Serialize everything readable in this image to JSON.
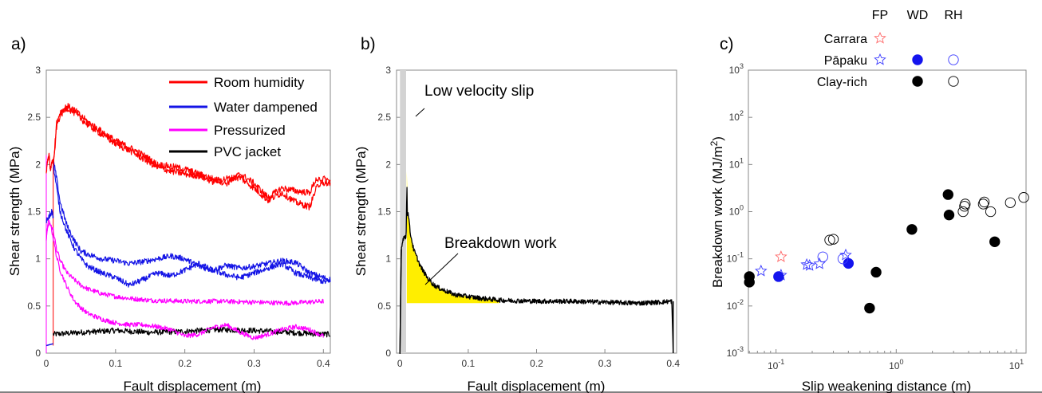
{
  "panels": {
    "a": {
      "letter": "a)",
      "xlabel": "Fault displacement (m)",
      "ylabel": "Shear strength (MPa)",
      "xlim": [
        0,
        0.41
      ],
      "ylim": [
        0,
        3
      ],
      "xticks": [
        "0",
        "0.1",
        "0.2",
        "0.3",
        "0.4"
      ],
      "yticks": [
        "0",
        "0.5",
        "1",
        "1.5",
        "2",
        "2.5",
        "3"
      ],
      "legend": [
        {
          "label": "Room humidity",
          "color": "#ff0000"
        },
        {
          "label": "Water dampened",
          "color": "#1414e6"
        },
        {
          "label": "Pressurized",
          "color": "#ff00ff"
        },
        {
          "label": "PVC jacket",
          "color": "#000000"
        }
      ]
    },
    "b": {
      "letter": "b)",
      "xlabel": "Fault displacement (m)",
      "ylabel": "Shear strength (MPa)",
      "xlim": [
        -0.005,
        0.405
      ],
      "ylim": [
        0,
        3
      ],
      "xticks": [
        "0",
        "0.1",
        "0.2",
        "0.3",
        "0.4"
      ],
      "yticks": [
        "0",
        "0.5",
        "1",
        "1.5",
        "2",
        "2.5",
        "3"
      ],
      "annotations": {
        "low_velocity": "Low velocity slip",
        "breakdown": "Breakdown work"
      },
      "colors": {
        "fill": "#ffee00",
        "band": "#d3d3d3"
      }
    },
    "c": {
      "letter": "c)",
      "xlabel": "Slip weakening distance (m)",
      "ylabel": "Breakdown work (MJ/m",
      "ylabel_sup": "2",
      "ylabel_end": ")",
      "xlim_log10": [
        -1.23,
        1.08
      ],
      "ylim_log10": [
        -3,
        3
      ],
      "xticks": [
        {
          "base": "10",
          "exp": "-1"
        },
        {
          "base": "10",
          "exp": "0"
        },
        {
          "base": "10",
          "exp": "1"
        }
      ],
      "yticks": [
        {
          "base": "10",
          "exp": "-3"
        },
        {
          "base": "10",
          "exp": "-2"
        },
        {
          "base": "10",
          "exp": "-1"
        },
        {
          "base": "10",
          "exp": "0"
        },
        {
          "base": "10",
          "exp": "1"
        },
        {
          "base": "10",
          "exp": "2"
        },
        {
          "base": "10",
          "exp": "3"
        }
      ],
      "legend_headers": [
        "FP",
        "WD",
        "RH"
      ],
      "legend_rows": [
        "Carrara",
        "Pāpaku",
        "Clay-rich"
      ],
      "colors": {
        "carrara": "#ff6666",
        "papaku": "#3a3aff",
        "clay": "#000000"
      }
    }
  },
  "chart_data": [
    {
      "type": "line",
      "panel": "a",
      "xlabel": "Fault displacement (m)",
      "ylabel": "Shear strength (MPa)",
      "xlim": [
        0,
        0.41
      ],
      "ylim": [
        0,
        3
      ],
      "series": [
        {
          "name": "Room humidity",
          "color": "#ff0000",
          "noise": 0.035,
          "runs": [
            {
              "x": [
                0.01,
                0.015,
                0.02,
                0.03,
                0.04,
                0.06,
                0.08,
                0.1,
                0.12,
                0.14,
                0.16,
                0.18,
                0.2,
                0.22,
                0.24,
                0.26,
                0.28,
                0.3,
                0.32,
                0.34,
                0.36,
                0.38,
                0.39,
                0.4,
                0.41
              ],
              "y": [
                2.0,
                2.45,
                2.55,
                2.62,
                2.58,
                2.45,
                2.35,
                2.25,
                2.18,
                2.1,
                2.0,
                1.98,
                1.95,
                1.9,
                1.85,
                1.8,
                1.9,
                1.8,
                1.65,
                1.75,
                1.72,
                1.7,
                1.85,
                1.8,
                1.8
              ]
            },
            {
              "x": [
                0.01,
                0.015,
                0.02,
                0.03,
                0.04,
                0.06,
                0.08,
                0.1,
                0.12,
                0.14,
                0.16,
                0.18,
                0.2,
                0.22,
                0.24,
                0.26,
                0.28,
                0.3,
                0.32,
                0.34,
                0.36,
                0.38,
                0.39,
                0.4,
                0.41
              ],
              "y": [
                1.95,
                2.4,
                2.52,
                2.6,
                2.55,
                2.42,
                2.32,
                2.22,
                2.15,
                2.06,
                1.97,
                1.93,
                1.9,
                1.88,
                1.82,
                1.85,
                1.86,
                1.75,
                1.62,
                1.7,
                1.6,
                1.55,
                1.75,
                1.85,
                1.82
              ]
            },
            {
              "x": [
                0.0,
                0.002,
                0.004,
                0.006,
                0.008,
                0.01
              ],
              "y": [
                1.9,
                2.05,
                2.1,
                1.95,
                2.0,
                2.05
              ]
            }
          ]
        },
        {
          "name": "Water dampened",
          "color": "#1414e6",
          "noise": 0.03,
          "runs": [
            {
              "x": [
                0.01,
                0.015,
                0.02,
                0.03,
                0.04,
                0.05,
                0.06,
                0.08,
                0.1,
                0.12,
                0.14,
                0.16,
                0.18,
                0.2,
                0.22,
                0.24,
                0.26,
                0.28,
                0.3,
                0.32,
                0.34,
                0.36,
                0.38,
                0.4,
                0.41
              ],
              "y": [
                2.05,
                1.85,
                1.6,
                1.35,
                1.2,
                1.08,
                1.05,
                1.0,
                0.98,
                0.95,
                0.97,
                1.0,
                1.03,
                1.0,
                0.92,
                0.88,
                0.93,
                0.9,
                0.92,
                0.95,
                0.98,
                0.96,
                0.85,
                0.8,
                0.78
              ]
            },
            {
              "x": [
                0.01,
                0.015,
                0.02,
                0.03,
                0.04,
                0.05,
                0.06,
                0.08,
                0.1,
                0.12,
                0.14,
                0.16,
                0.18,
                0.2,
                0.22,
                0.24,
                0.26,
                0.28,
                0.3,
                0.32,
                0.34,
                0.36,
                0.38,
                0.4,
                0.41
              ],
              "y": [
                2.0,
                1.75,
                1.5,
                1.28,
                1.12,
                1.0,
                0.92,
                0.85,
                0.8,
                0.72,
                0.78,
                0.85,
                0.82,
                0.88,
                0.95,
                0.88,
                0.83,
                0.8,
                0.85,
                0.9,
                0.95,
                0.85,
                0.8,
                0.76,
                0.75
              ]
            },
            {
              "x": [
                0.0,
                0.004,
                0.008,
                0.01
              ],
              "y": [
                1.4,
                1.45,
                1.5,
                1.45
              ]
            }
          ]
        },
        {
          "name": "Pressurized",
          "color": "#ff00ff",
          "noise": 0.025,
          "runs": [
            {
              "x": [
                0.0,
                0.002,
                0.005,
                0.01,
                0.015,
                0.02,
                0.03,
                0.04,
                0.05,
                0.06,
                0.08,
                0.1,
                0.12,
                0.15,
                0.2,
                0.25,
                0.3,
                0.35,
                0.4
              ],
              "y": [
                1.2,
                1.35,
                1.38,
                1.3,
                1.1,
                0.98,
                0.85,
                0.78,
                0.72,
                0.68,
                0.63,
                0.6,
                0.58,
                0.56,
                0.55,
                0.55,
                0.54,
                0.53,
                0.55
              ]
            },
            {
              "x": [
                0.0,
                0.003,
                0.006,
                0.01,
                0.015,
                0.02,
                0.03,
                0.04,
                0.05,
                0.06,
                0.08,
                0.1,
                0.12,
                0.14,
                0.16,
                0.18,
                0.2,
                0.22,
                0.24,
                0.26,
                0.28,
                0.3,
                0.32,
                0.34,
                0.36,
                0.38,
                0.4
              ],
              "y": [
                1.2,
                1.4,
                1.38,
                1.22,
                1.02,
                0.88,
                0.7,
                0.56,
                0.48,
                0.42,
                0.36,
                0.32,
                0.3,
                0.3,
                0.28,
                0.25,
                0.18,
                0.2,
                0.27,
                0.3,
                0.22,
                0.16,
                0.2,
                0.25,
                0.28,
                0.25,
                0.18
              ]
            }
          ]
        },
        {
          "name": "PVC jacket",
          "color": "#000000",
          "noise": 0.03,
          "runs": [
            {
              "x": [
                0.01,
                0.05,
                0.1,
                0.15,
                0.2,
                0.25,
                0.3,
                0.35,
                0.4,
                0.41
              ],
              "y": [
                0.2,
                0.22,
                0.24,
                0.22,
                0.23,
                0.25,
                0.24,
                0.22,
                0.2,
                0.2
              ]
            }
          ]
        }
      ]
    },
    {
      "type": "line",
      "panel": "b",
      "xlabel": "Fault displacement (m)",
      "ylabel": "Shear strength (MPa)",
      "xlim": [
        -0.005,
        0.405
      ],
      "ylim": [
        0,
        3
      ],
      "low_velocity_band": [
        0.0,
        0.009
      ],
      "breakdown_work_area": {
        "x_start": 0.01,
        "x_end": 0.145,
        "baseline": 0.53
      },
      "series": [
        {
          "name": "",
          "color": "#000000",
          "noise": 0.025,
          "x": [
            0.0,
            0.001,
            0.002,
            0.004,
            0.006,
            0.008,
            0.009,
            0.0095,
            0.01,
            0.011,
            0.012,
            0.015,
            0.02,
            0.03,
            0.04,
            0.05,
            0.06,
            0.08,
            0.1,
            0.12,
            0.15,
            0.2,
            0.25,
            0.3,
            0.35,
            0.38,
            0.398,
            0.4
          ],
          "y": [
            0.0,
            0.7,
            1.1,
            1.2,
            1.23,
            1.22,
            1.25,
            1.35,
            1.93,
            1.4,
            1.5,
            1.28,
            1.1,
            0.92,
            0.8,
            0.72,
            0.68,
            0.62,
            0.6,
            0.58,
            0.56,
            0.55,
            0.55,
            0.54,
            0.53,
            0.54,
            0.55,
            0.0
          ]
        }
      ]
    },
    {
      "type": "scatter",
      "panel": "c",
      "xlabel": "Slip weakening distance (m)",
      "ylabel": "Breakdown work (MJ/m2)",
      "xscale": "log",
      "yscale": "log",
      "xlim": [
        0.059,
        12
      ],
      "ylim": [
        0.001,
        1000
      ],
      "series": [
        {
          "name": "Carrara FP",
          "marker": "star-open",
          "color": "#ff6666",
          "points": [
            [
              0.11,
              0.11
            ]
          ]
        },
        {
          "name": "Pāpaku FP",
          "marker": "star-open",
          "color": "#3a3aff",
          "points": [
            [
              0.075,
              0.055
            ],
            [
              0.11,
              0.045
            ],
            [
              0.18,
              0.075
            ],
            [
              0.19,
              0.072
            ],
            [
              0.23,
              0.078
            ],
            [
              0.38,
              0.12
            ]
          ]
        },
        {
          "name": "Pāpaku WD",
          "marker": "circle-filled",
          "color": "#1414ee",
          "points": [
            [
              0.105,
              0.042
            ],
            [
              0.4,
              0.08
            ]
          ]
        },
        {
          "name": "Pāpaku RH",
          "marker": "circle-open",
          "color": "#3a3aff",
          "points": [
            [
              0.245,
              0.11
            ],
            [
              0.36,
              0.1
            ]
          ]
        },
        {
          "name": "Clay-rich WD",
          "marker": "circle-filled",
          "color": "#000000",
          "points": [
            [
              0.06,
              0.032
            ],
            [
              0.06,
              0.042
            ],
            [
              0.6,
              0.009
            ],
            [
              0.68,
              0.052
            ],
            [
              1.35,
              0.42
            ],
            [
              2.7,
              2.3
            ],
            [
              2.75,
              0.85
            ],
            [
              6.6,
              0.23
            ]
          ]
        },
        {
          "name": "Clay-rich RH",
          "marker": "circle-open",
          "color": "#000000",
          "points": [
            [
              0.28,
              0.25
            ],
            [
              0.3,
              0.26
            ],
            [
              3.6,
              1.0
            ],
            [
              3.7,
              1.3
            ],
            [
              3.75,
              1.45
            ],
            [
              5.3,
              1.45
            ],
            [
              5.4,
              1.6
            ],
            [
              6.1,
              1.0
            ],
            [
              8.9,
              1.55
            ],
            [
              11.5,
              2.0
            ]
          ]
        }
      ]
    }
  ]
}
